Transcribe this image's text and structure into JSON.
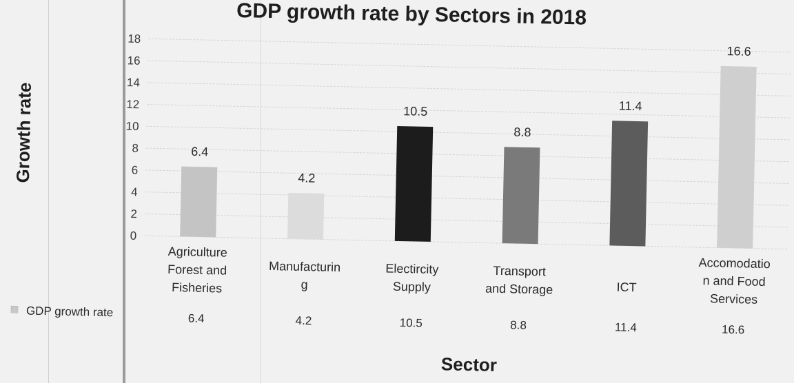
{
  "chart_data": {
    "type": "bar",
    "title": "GDP growth rate by Sectors in 2018",
    "xlabel": "Sector",
    "ylabel": "Growth rate",
    "ylim": [
      0,
      18
    ],
    "yticks": [
      "0",
      "2",
      "4",
      "6",
      "8",
      "10",
      "12",
      "14",
      "16",
      "18"
    ],
    "grid": true,
    "categories": [
      "Agriculture Forest and Fisheries",
      "Manufacturing",
      "Electircity Supply",
      "Transport and Storage",
      "ICT",
      "Accomodation and Food Services"
    ],
    "category_lines": [
      [
        "Agriculture",
        "Forest and",
        "Fisheries"
      ],
      [
        "Manufacturin",
        "g"
      ],
      [
        "Electircity",
        "Supply"
      ],
      [
        "Transport",
        "and Storage"
      ],
      [
        "ICT"
      ],
      [
        "Accomodatio",
        "n and Food",
        "Services"
      ]
    ],
    "series": [
      {
        "name": "GDP growth rate",
        "values": [
          6.4,
          4.2,
          10.5,
          8.8,
          11.4,
          16.6
        ],
        "labels": [
          "6.4",
          "4.2",
          "10.5",
          "8.8",
          "11.4",
          "16.6"
        ],
        "colors": [
          "#c4c4c4",
          "#dcdcdc",
          "#1c1c1c",
          "#7a7a7a",
          "#5c5c5c",
          "#cfcfcf"
        ]
      }
    ],
    "data_table": true
  }
}
